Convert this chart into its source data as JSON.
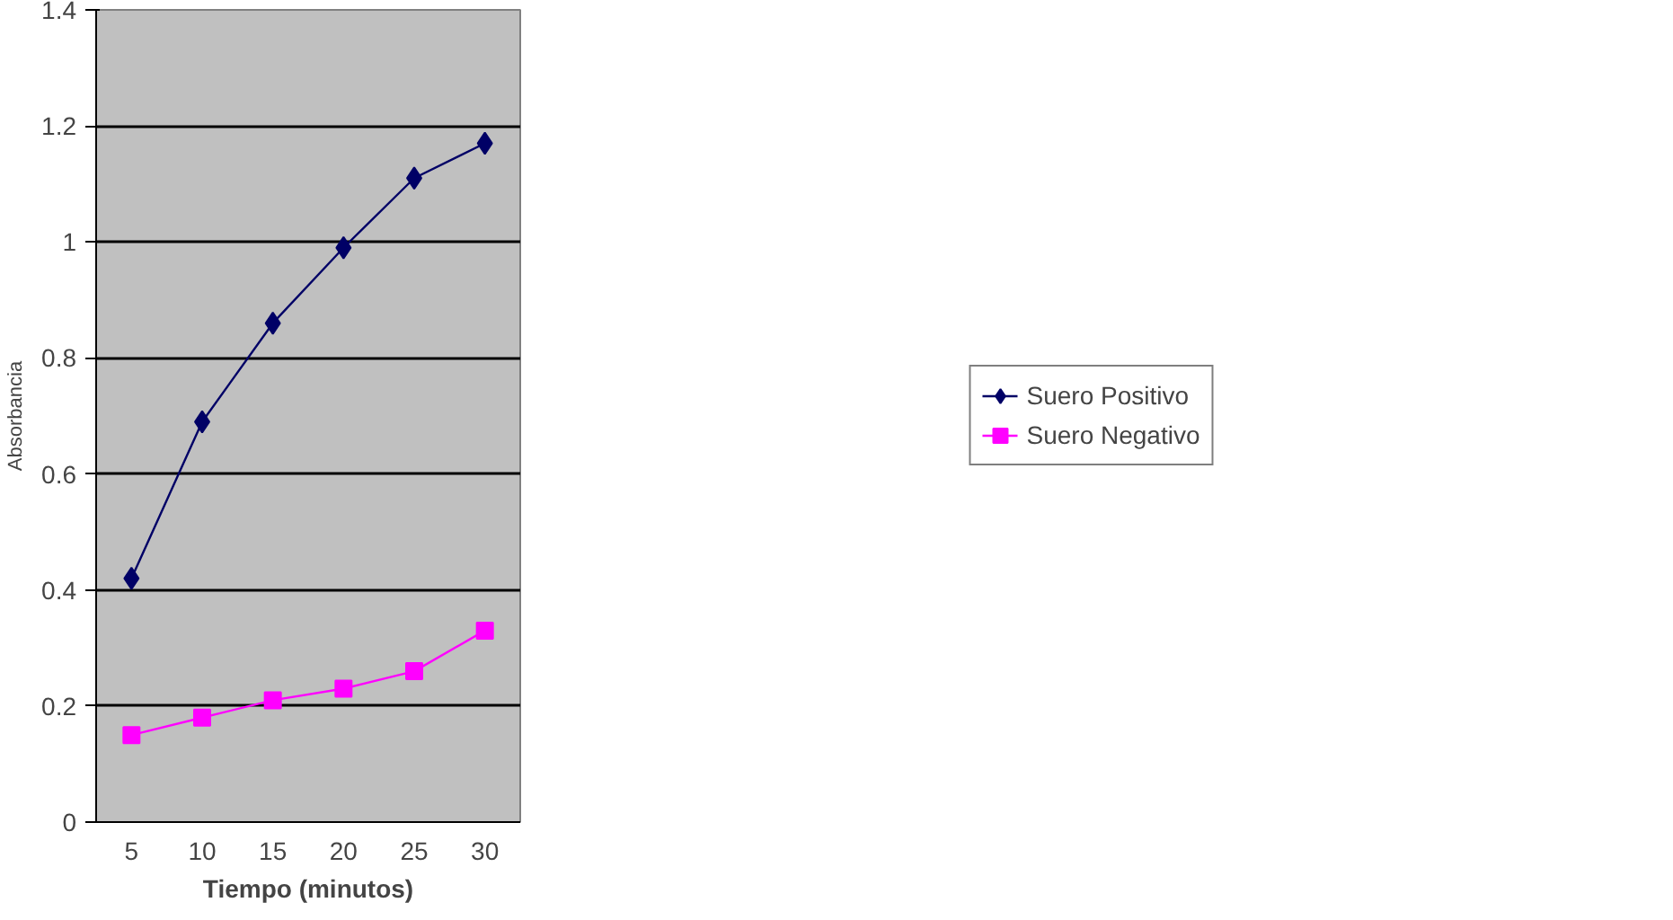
{
  "chart_data": {
    "type": "line",
    "xlabel": "Tiempo (minutos)",
    "ylabel": "Absorbancia",
    "categories": [
      "5",
      "10",
      "15",
      "20",
      "25",
      "30"
    ],
    "series": [
      {
        "name": "Suero Positivo",
        "color": "#000066",
        "marker": "diamond",
        "values": [
          0.42,
          0.69,
          0.86,
          0.99,
          1.11,
          1.17
        ]
      },
      {
        "name": "Suero Negativo",
        "color": "#ff00ff",
        "marker": "square",
        "values": [
          0.15,
          0.18,
          0.21,
          0.23,
          0.26,
          0.33
        ]
      }
    ],
    "ylim": [
      0,
      1.4
    ],
    "yticks": [
      0,
      0.2,
      0.4,
      0.6,
      0.8,
      1,
      1.2,
      1.4
    ],
    "grid": "y",
    "legend": "right",
    "line_style": "solid"
  }
}
